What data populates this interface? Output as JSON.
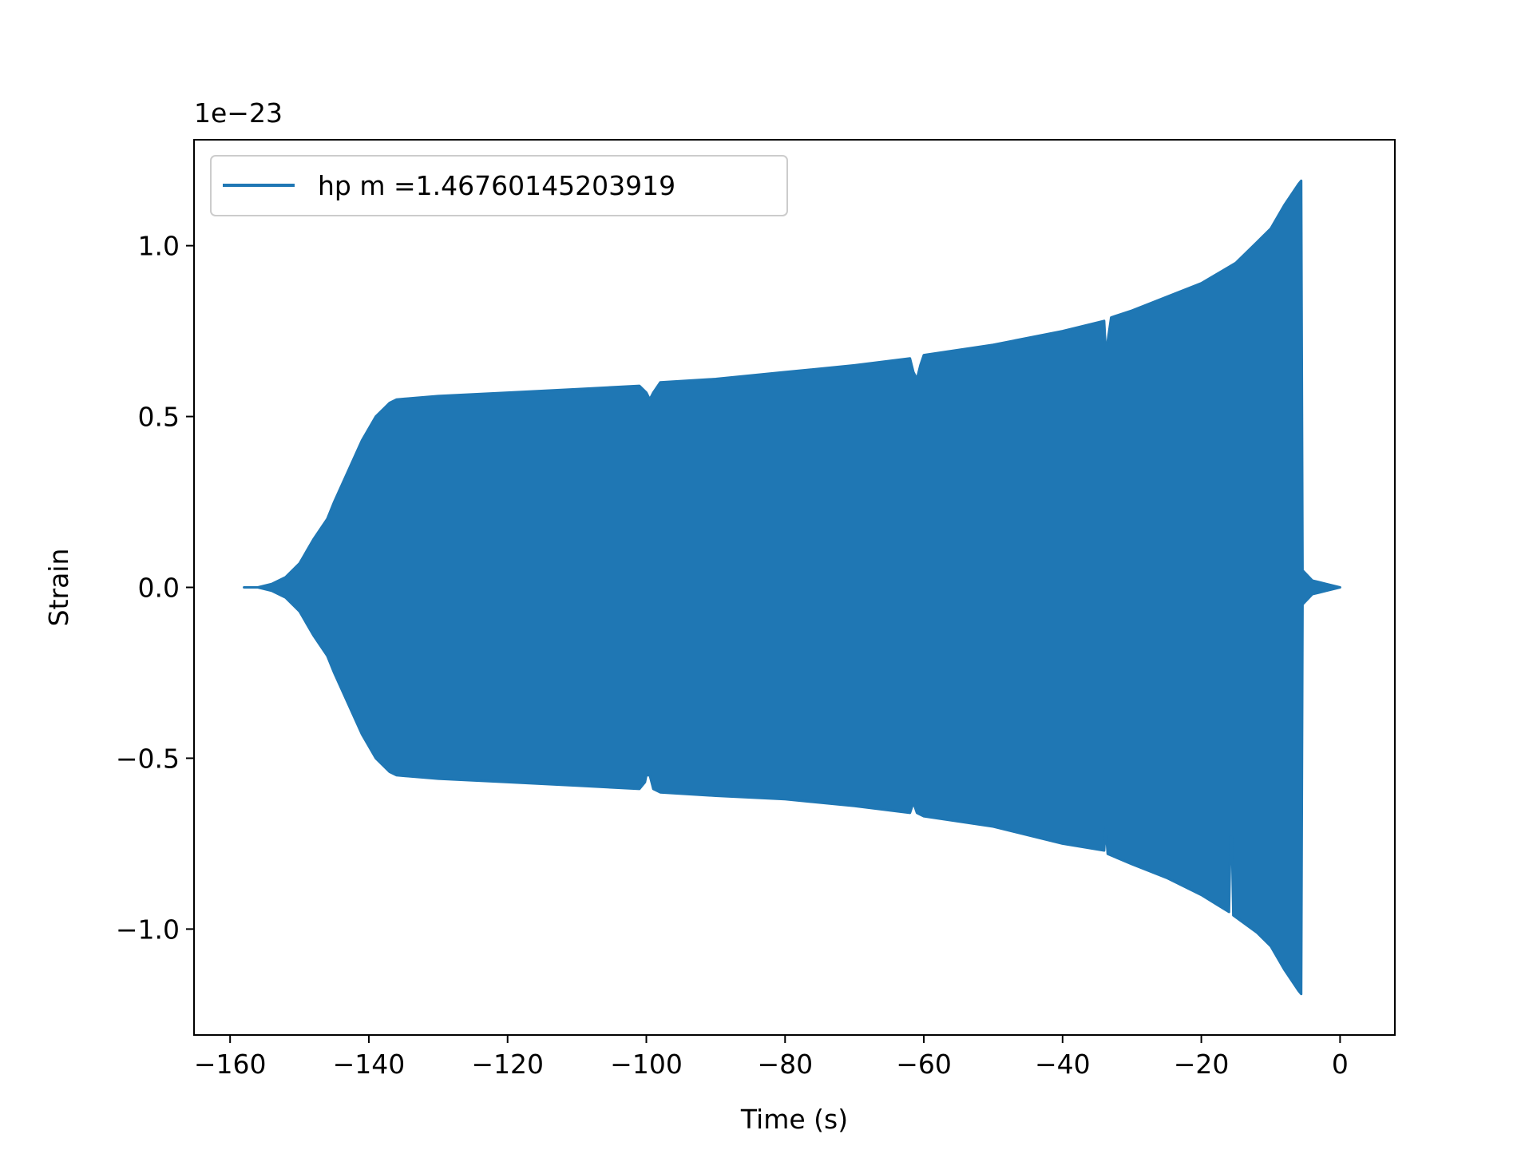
{
  "chart_data": {
    "type": "line",
    "title": "",
    "xlabel": "Time (s)",
    "ylabel": "Strain",
    "offset_label": "1e−23",
    "y_scale_factor": 1e-23,
    "xlim": [
      -165.2,
      7.9
    ],
    "ylim": [
      -1.31,
      1.31
    ],
    "x_ticks": [
      -160,
      -140,
      -120,
      -100,
      -80,
      -60,
      -40,
      -20,
      0
    ],
    "x_tick_labels": [
      "−160",
      "−140",
      "−120",
      "−100",
      "−80",
      "−60",
      "−40",
      "−20",
      "0"
    ],
    "y_ticks": [
      -1.0,
      -0.5,
      0.0,
      0.5,
      1.0
    ],
    "y_tick_labels": [
      "−1.0",
      "−0.5",
      "0.0",
      "0.5",
      "1.0"
    ],
    "grid": false,
    "legend": {
      "placement": "upper-left",
      "entries": [
        "hp m =1.46760145203919"
      ]
    },
    "series": [
      {
        "name": "hp m =1.46760145203919",
        "color": "#1f77b4",
        "rendering": "dense oscillation filled between upper and lower envelope",
        "x_range": [
          -158.0,
          0.0
        ],
        "upper_envelope": [
          [
            -158.0,
            0.0
          ],
          [
            -156.0,
            0.0
          ],
          [
            -154.0,
            0.01
          ],
          [
            -152.0,
            0.03
          ],
          [
            -150.0,
            0.07
          ],
          [
            -148.0,
            0.14
          ],
          [
            -146.0,
            0.2
          ],
          [
            -145.0,
            0.25
          ],
          [
            -143.0,
            0.34
          ],
          [
            -141.0,
            0.43
          ],
          [
            -139.0,
            0.5
          ],
          [
            -137.0,
            0.54
          ],
          [
            -136.0,
            0.55
          ],
          [
            -130.0,
            0.56
          ],
          [
            -120.0,
            0.57
          ],
          [
            -110.0,
            0.58
          ],
          [
            -101.0,
            0.59
          ],
          [
            -100.0,
            0.57
          ],
          [
            -99.5,
            0.55
          ],
          [
            -99.0,
            0.57
          ],
          [
            -98.0,
            0.6
          ],
          [
            -90.0,
            0.61
          ],
          [
            -80.0,
            0.63
          ],
          [
            -70.0,
            0.65
          ],
          [
            -62.0,
            0.67
          ],
          [
            -61.5,
            0.63
          ],
          [
            -61.0,
            0.61
          ],
          [
            -60.5,
            0.65
          ],
          [
            -60.0,
            0.68
          ],
          [
            -50.0,
            0.71
          ],
          [
            -40.0,
            0.75
          ],
          [
            -34.0,
            0.78
          ],
          [
            -33.8,
            0.7
          ],
          [
            -33.5,
            0.72
          ],
          [
            -33.0,
            0.79
          ],
          [
            -30.0,
            0.81
          ],
          [
            -25.0,
            0.85
          ],
          [
            -20.0,
            0.89
          ],
          [
            -15.0,
            0.95
          ],
          [
            -12.0,
            1.01
          ],
          [
            -10.0,
            1.05
          ],
          [
            -8.0,
            1.12
          ],
          [
            -6.0,
            1.18
          ],
          [
            -5.6,
            1.19
          ],
          [
            -5.4,
            0.05
          ],
          [
            -4.0,
            0.02
          ],
          [
            -2.0,
            0.01
          ],
          [
            0.0,
            0.0
          ]
        ],
        "lower_envelope": [
          [
            -158.0,
            0.0
          ],
          [
            -156.0,
            0.0
          ],
          [
            -154.0,
            -0.01
          ],
          [
            -152.0,
            -0.03
          ],
          [
            -150.0,
            -0.07
          ],
          [
            -148.0,
            -0.14
          ],
          [
            -146.0,
            -0.2
          ],
          [
            -145.0,
            -0.25
          ],
          [
            -143.0,
            -0.34
          ],
          [
            -141.0,
            -0.43
          ],
          [
            -139.0,
            -0.5
          ],
          [
            -137.0,
            -0.54
          ],
          [
            -136.0,
            -0.55
          ],
          [
            -130.0,
            -0.56
          ],
          [
            -120.0,
            -0.57
          ],
          [
            -110.0,
            -0.58
          ],
          [
            -101.0,
            -0.59
          ],
          [
            -100.2,
            -0.57
          ],
          [
            -100.0,
            -0.55
          ],
          [
            -99.5,
            -0.55
          ],
          [
            -99.0,
            -0.59
          ],
          [
            -98.0,
            -0.6
          ],
          [
            -90.0,
            -0.61
          ],
          [
            -80.0,
            -0.62
          ],
          [
            -70.0,
            -0.64
          ],
          [
            -62.0,
            -0.66
          ],
          [
            -61.5,
            -0.63
          ],
          [
            -61.0,
            -0.66
          ],
          [
            -60.0,
            -0.67
          ],
          [
            -50.0,
            -0.7
          ],
          [
            -40.0,
            -0.75
          ],
          [
            -34.0,
            -0.77
          ],
          [
            -33.8,
            -0.7
          ],
          [
            -33.5,
            -0.78
          ],
          [
            -30.0,
            -0.81
          ],
          [
            -25.0,
            -0.85
          ],
          [
            -20.0,
            -0.9
          ],
          [
            -16.0,
            -0.95
          ],
          [
            -15.8,
            -0.73
          ],
          [
            -15.6,
            -0.73
          ],
          [
            -15.4,
            -0.96
          ],
          [
            -12.0,
            -1.01
          ],
          [
            -10.0,
            -1.05
          ],
          [
            -8.0,
            -1.12
          ],
          [
            -6.0,
            -1.18
          ],
          [
            -5.6,
            -1.19
          ],
          [
            -5.4,
            -0.05
          ],
          [
            -4.0,
            -0.02
          ],
          [
            -2.0,
            -0.01
          ],
          [
            0.0,
            0.0
          ]
        ]
      }
    ]
  }
}
